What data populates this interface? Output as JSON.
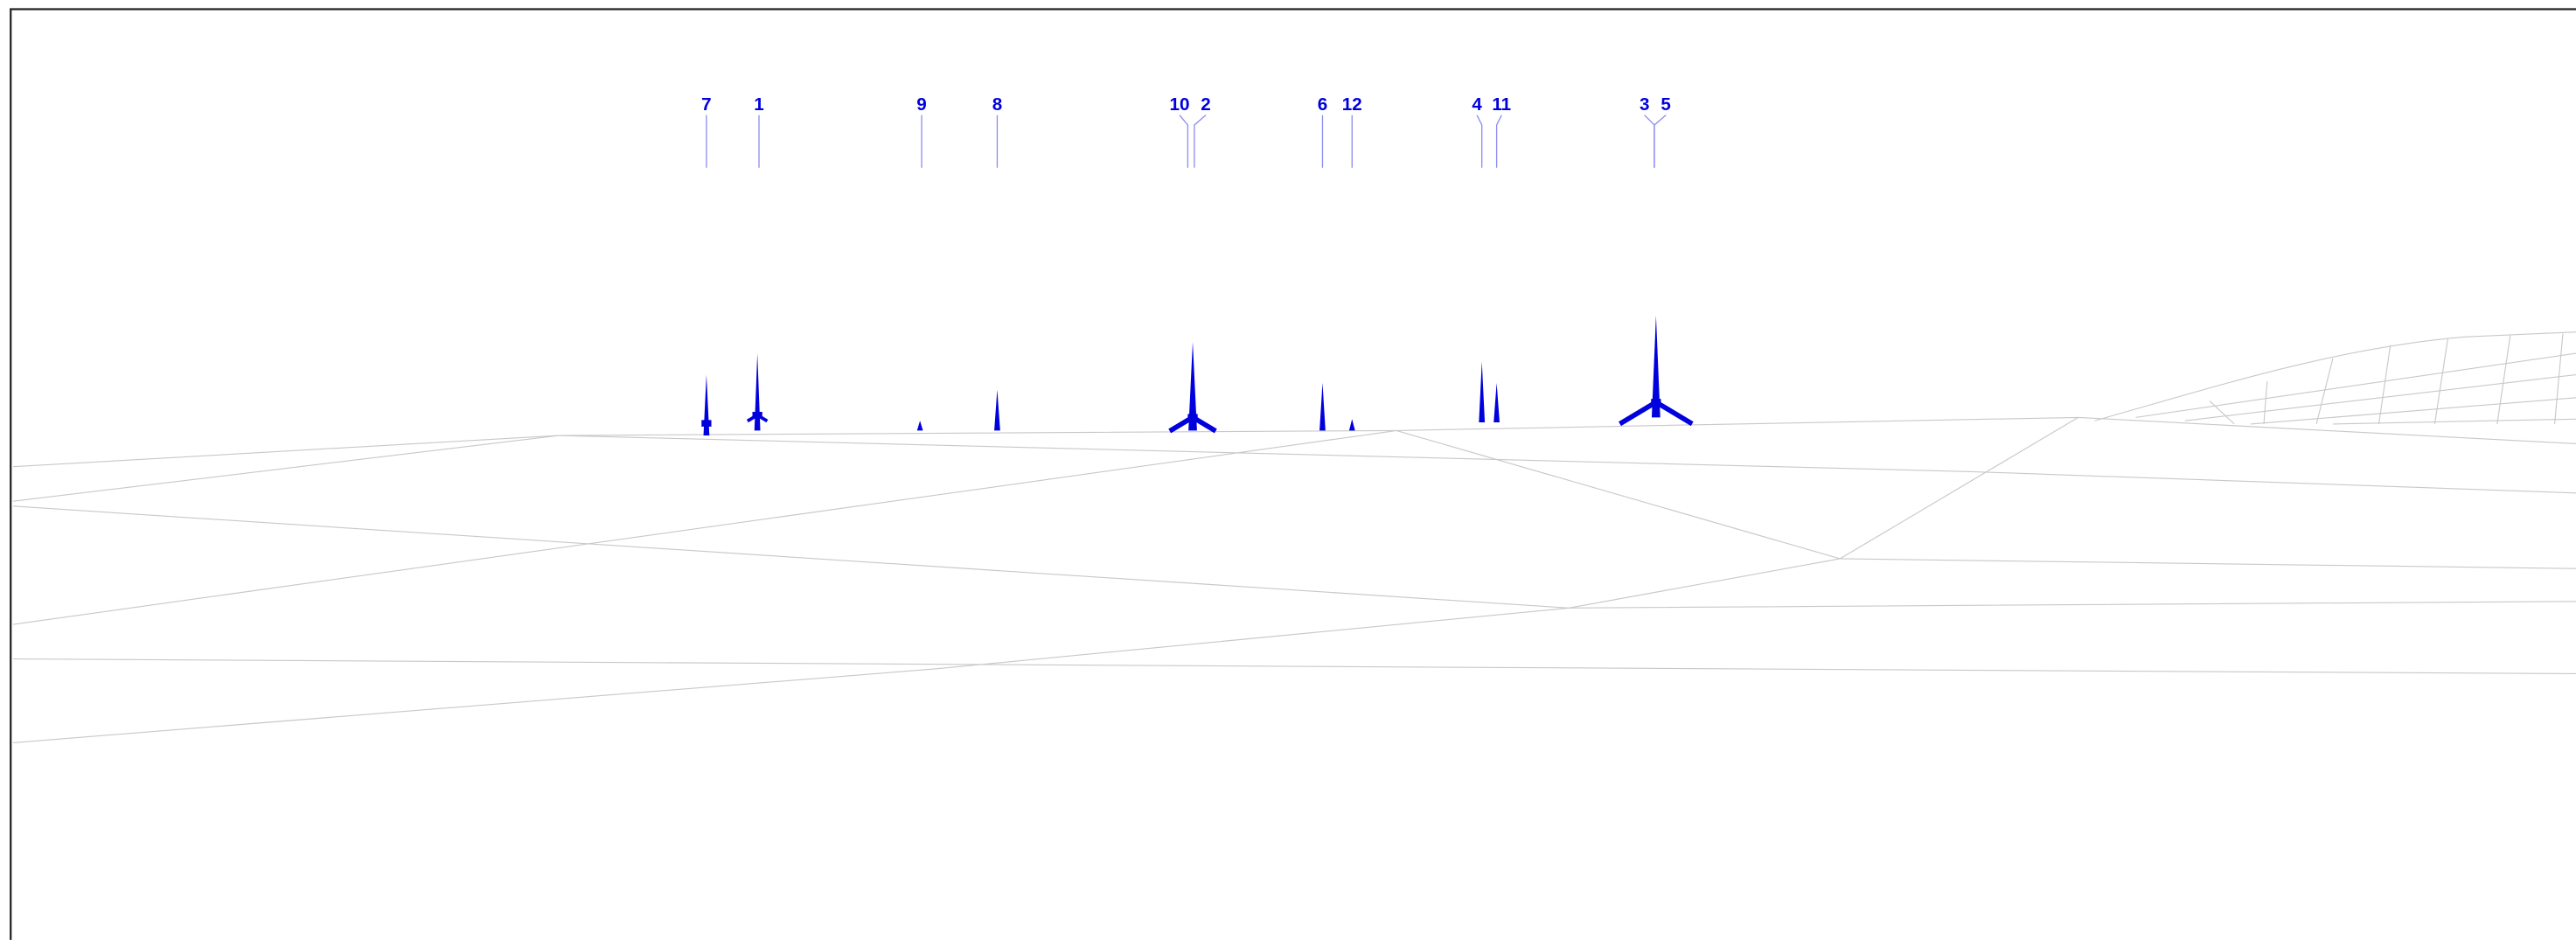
{
  "turbine_labels": [
    "7",
    "1",
    "9",
    "8",
    "10",
    "2",
    "6",
    "12",
    "4",
    "11",
    "3",
    "5"
  ]
}
